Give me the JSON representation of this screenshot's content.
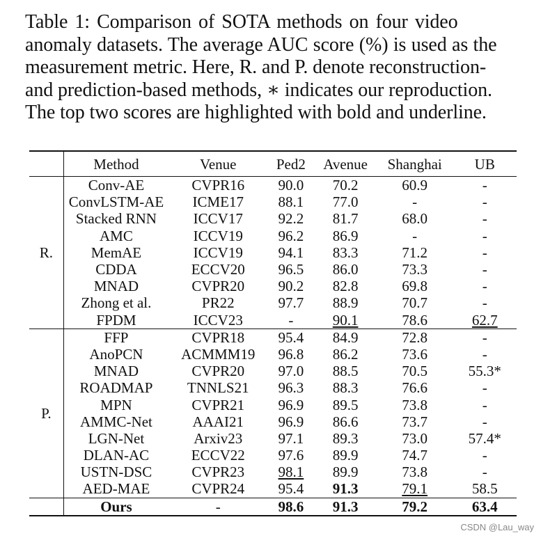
{
  "caption": {
    "lines": [
      "Table 1: Comparison of SOTA methods on four video",
      "anomaly datasets. The average AUC score (%) is used as the",
      "measurement metric. Here, R. and P. denote reconstruction-",
      "and prediction-based methods, ∗ indicates our reproduction.",
      "The top two scores are highlighted with bold and underline."
    ]
  },
  "table": {
    "headers": [
      "Method",
      "Venue",
      "Ped2",
      "Avenue",
      "Shanghai",
      "UB"
    ],
    "groups": [
      {
        "label": "R.",
        "rows": [
          {
            "method": "Conv-AE",
            "venue": "CVPR16",
            "ped2": "90.0",
            "avenue": "70.2",
            "shanghai": "60.9",
            "ub": "-"
          },
          {
            "method": "ConvLSTM-AE",
            "venue": "ICME17",
            "ped2": "88.1",
            "avenue": "77.0",
            "shanghai": "-",
            "ub": "-"
          },
          {
            "method": "Stacked RNN",
            "venue": "ICCV17",
            "ped2": "92.2",
            "avenue": "81.7",
            "shanghai": "68.0",
            "ub": "-"
          },
          {
            "method": "AMC",
            "venue": "ICCV19",
            "ped2": "96.2",
            "avenue": "86.9",
            "shanghai": "-",
            "ub": "-"
          },
          {
            "method": "MemAE",
            "venue": "ICCV19",
            "ped2": "94.1",
            "avenue": "83.3",
            "shanghai": "71.2",
            "ub": "-"
          },
          {
            "method": "CDDA",
            "venue": "ECCV20",
            "ped2": "96.5",
            "avenue": "86.0",
            "shanghai": "73.3",
            "ub": "-"
          },
          {
            "method": "MNAD",
            "venue": "CVPR20",
            "ped2": "90.2",
            "avenue": "82.8",
            "shanghai": "69.8",
            "ub": "-"
          },
          {
            "method": "Zhong et al.",
            "venue": "PR22",
            "ped2": "97.7",
            "avenue": "88.9",
            "shanghai": "70.7",
            "ub": "-"
          },
          {
            "method": "FPDM",
            "venue": "ICCV23",
            "ped2": "-",
            "avenue": "90.1",
            "shanghai": "78.6",
            "ub": "62.7"
          }
        ]
      },
      {
        "label": "P.",
        "rows": [
          {
            "method": "FFP",
            "venue": "CVPR18",
            "ped2": "95.4",
            "avenue": "84.9",
            "shanghai": "72.8",
            "ub": "-"
          },
          {
            "method": "AnoPCN",
            "venue": "ACMMM19",
            "ped2": "96.8",
            "avenue": "86.2",
            "shanghai": "73.6",
            "ub": "-"
          },
          {
            "method": "MNAD",
            "venue": "CVPR20",
            "ped2": "97.0",
            "avenue": "88.5",
            "shanghai": "70.5",
            "ub": "55.3*"
          },
          {
            "method": "ROADMAP",
            "venue": "TNNLS21",
            "ped2": "96.3",
            "avenue": "88.3",
            "shanghai": "76.6",
            "ub": "-"
          },
          {
            "method": "MPN",
            "venue": "CVPR21",
            "ped2": "96.9",
            "avenue": "89.5",
            "shanghai": "73.8",
            "ub": "-"
          },
          {
            "method": "AMMC-Net",
            "venue": "AAAI21",
            "ped2": "96.9",
            "avenue": "86.6",
            "shanghai": "73.7",
            "ub": "-"
          },
          {
            "method": "LGN-Net",
            "venue": "Arxiv23",
            "ped2": "97.1",
            "avenue": "89.3",
            "shanghai": "73.0",
            "ub": "57.4*"
          },
          {
            "method": "DLAN-AC",
            "venue": "ECCV22",
            "ped2": "97.6",
            "avenue": "89.9",
            "shanghai": "74.7",
            "ub": "-"
          },
          {
            "method": "USTN-DSC",
            "venue": "CVPR23",
            "ped2": "98.1",
            "avenue": "89.9",
            "shanghai": "73.8",
            "ub": "-"
          },
          {
            "method": "AED-MAE",
            "venue": "CVPR24",
            "ped2": "95.4",
            "avenue": "91.3",
            "shanghai": "79.1",
            "ub": "58.5"
          }
        ]
      }
    ],
    "ours": {
      "method": "Ours",
      "venue": "-",
      "ped2": "98.6",
      "avenue": "91.3",
      "shanghai": "79.2",
      "ub": "63.4"
    }
  },
  "watermark": "CSDN @Lau_way"
}
